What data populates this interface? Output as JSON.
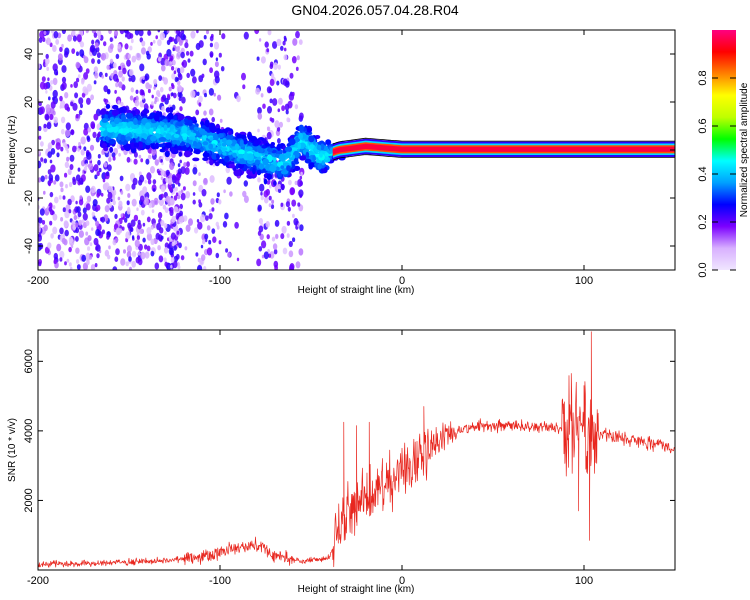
{
  "title": "GN04.2026.057.04.28.R04",
  "chart_data": [
    {
      "type": "heatmap",
      "xlabel": "Height of straight line (km)",
      "ylabel": "Frequency (Hz)",
      "xlim": [
        -200,
        150
      ],
      "ylim": [
        -50,
        50
      ],
      "xticks": [
        -200,
        -100,
        0,
        100
      ],
      "yticks": [
        -40,
        -20,
        0,
        20,
        40
      ],
      "colorbar": {
        "label": "Normalized spectral amplitude",
        "range": [
          0,
          1
        ],
        "ticks": [
          "0.0",
          "0.2",
          "0.4",
          "0.6",
          "0.8"
        ],
        "stops": [
          "#f0e6ff",
          "#d8b0ff",
          "#7b00ff",
          "#0000ff",
          "#00a0ff",
          "#00ffff",
          "#00ff00",
          "#bfff00",
          "#ffff00",
          "#ff8000",
          "#ff0000",
          "#ff0080"
        ]
      },
      "ridge": [
        {
          "x": -160,
          "y": 9
        },
        {
          "x": -140,
          "y": 8
        },
        {
          "x": -120,
          "y": 7
        },
        {
          "x": -100,
          "y": 2
        },
        {
          "x": -80,
          "y": -3
        },
        {
          "x": -65,
          "y": -6
        },
        {
          "x": -55,
          "y": 4
        },
        {
          "x": -45,
          "y": -3
        },
        {
          "x": -35,
          "y": 0
        },
        {
          "x": -20,
          "y": 1.5
        },
        {
          "x": 0,
          "y": 0.3
        },
        {
          "x": 150,
          "y": 0.3
        }
      ]
    },
    {
      "type": "line",
      "xlabel": "Height of straight line (km)",
      "ylabel": "SNR (10 * v/v)",
      "xlim": [
        -200,
        150
      ],
      "ylim": [
        0,
        6900
      ],
      "xticks": [
        -200,
        -100,
        0,
        100
      ],
      "yticks": [
        2000,
        4000,
        6000
      ],
      "color": "#e8271f",
      "trend": [
        {
          "x": -200,
          "y": 150
        },
        {
          "x": -160,
          "y": 200
        },
        {
          "x": -130,
          "y": 280
        },
        {
          "x": -110,
          "y": 400
        },
        {
          "x": -90,
          "y": 650
        },
        {
          "x": -80,
          "y": 750
        },
        {
          "x": -70,
          "y": 400
        },
        {
          "x": -55,
          "y": 250
        },
        {
          "x": -40,
          "y": 350
        },
        {
          "x": -35,
          "y": 1200
        },
        {
          "x": -25,
          "y": 1900
        },
        {
          "x": -15,
          "y": 2200
        },
        {
          "x": -5,
          "y": 2600
        },
        {
          "x": 5,
          "y": 3000
        },
        {
          "x": 15,
          "y": 3500
        },
        {
          "x": 25,
          "y": 3900
        },
        {
          "x": 40,
          "y": 4150
        },
        {
          "x": 60,
          "y": 4150
        },
        {
          "x": 80,
          "y": 4100
        },
        {
          "x": 95,
          "y": 4050
        },
        {
          "x": 110,
          "y": 3900
        },
        {
          "x": 130,
          "y": 3700
        },
        {
          "x": 150,
          "y": 3500
        }
      ],
      "spikes": [
        {
          "x": -32,
          "y": 4250
        },
        {
          "x": -25,
          "y": 4150
        },
        {
          "x": -18,
          "y": 4250
        },
        {
          "x": 12,
          "y": 4700
        },
        {
          "x": 93,
          "y": 5650
        },
        {
          "x": 100,
          "y": 5300
        },
        {
          "x": 104,
          "y": 6850
        },
        {
          "x": 103,
          "y": 850
        },
        {
          "x": 97,
          "y": 1700
        }
      ]
    }
  ]
}
